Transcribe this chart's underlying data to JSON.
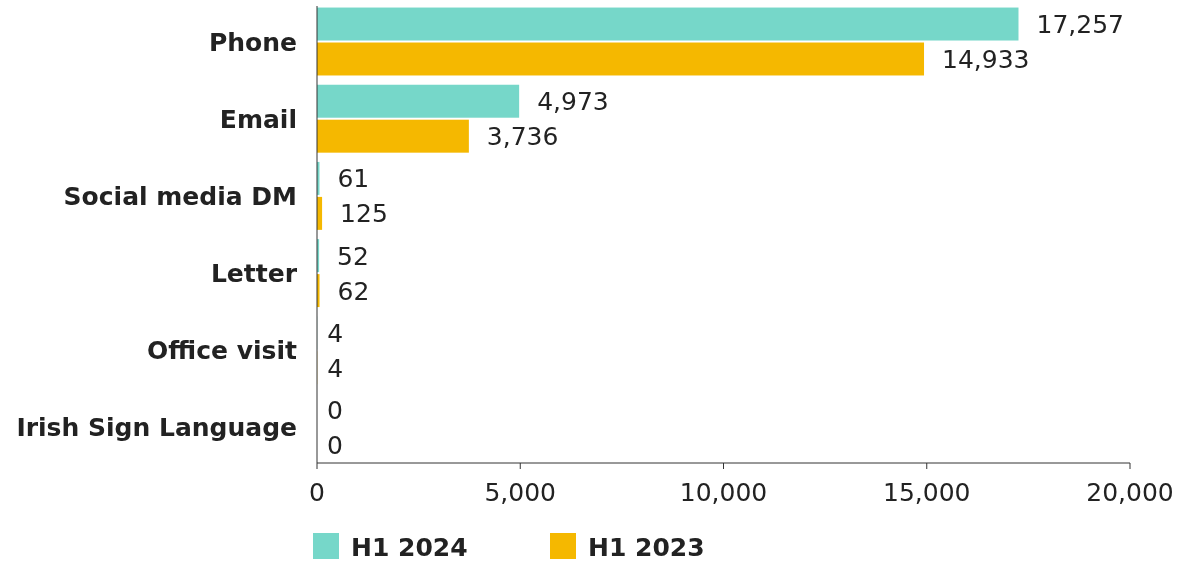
{
  "chart_data": {
    "type": "bar",
    "orientation": "horizontal",
    "categories": [
      "Phone",
      "Email",
      "Social media DM",
      "Letter",
      "Office visit",
      "Irish Sign Language"
    ],
    "series": [
      {
        "name": "H1 2024",
        "color": "#76d7c9",
        "values": [
          17257,
          4973,
          61,
          52,
          4,
          0
        ],
        "value_labels": [
          "17,257",
          "4,973",
          "61",
          "52",
          "4",
          "0"
        ]
      },
      {
        "name": "H1 2023",
        "color": "#f5b800",
        "values": [
          14933,
          3736,
          125,
          62,
          4,
          0
        ],
        "value_labels": [
          "14,933",
          "3,736",
          "125",
          "62",
          "4",
          "0"
        ]
      }
    ],
    "xlim": [
      0,
      20000
    ],
    "xticks": [
      0,
      {
        "value": 5000,
        "label": "5,000"
      },
      {
        "value": 10000,
        "label": "10,000"
      },
      {
        "value": 15000,
        "label": "15,000"
      },
      {
        "value": 20000,
        "label": "20,000"
      }
    ],
    "legend": "bottom",
    "grid": false
  }
}
